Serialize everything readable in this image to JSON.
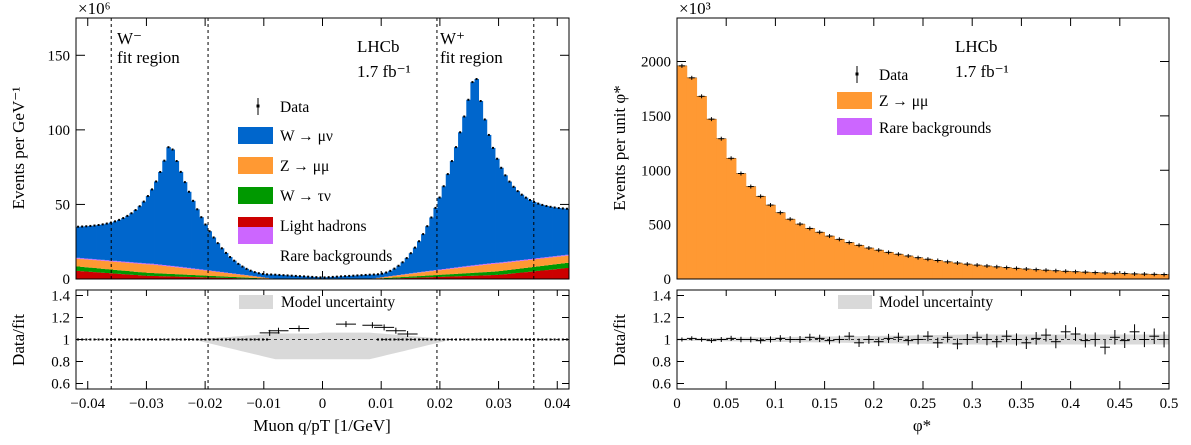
{
  "chart_data": [
    {
      "type": "bar",
      "panel": "left",
      "stacked": true,
      "xlabel": "Muon q/pT [1/GeV]",
      "ylabel": "Events per GeV⁻¹",
      "y_multiplier": "×10⁶",
      "xlim": [
        -0.042,
        0.042
      ],
      "ylim": [
        0,
        175
      ],
      "xticks": [
        -0.04,
        -0.03,
        -0.02,
        -0.01,
        0,
        0.01,
        0.02,
        0.03,
        0.04
      ],
      "xticklabels": [
        "−0.04",
        "−0.03",
        "−0.02",
        "−0.01",
        "0",
        "0.01",
        "0.02",
        "0.03",
        "0.04"
      ],
      "yticks": [
        0,
        50,
        100,
        150
      ],
      "yticklabels": [
        "0",
        "50",
        "100",
        "150"
      ],
      "experiment": "LHCb",
      "luminosity": "1.7 fb⁻¹",
      "legend": [
        "Data",
        "W → μν",
        "Z → μμ",
        "W → τν",
        "Light hadrons",
        "Rare backgrounds"
      ],
      "fit_regions": [
        {
          "label_sign": "W⁻",
          "label": "fit region",
          "range": [
            -0.036,
            -0.0195
          ]
        },
        {
          "label_sign": "W⁺",
          "label": "fit region",
          "range": [
            0.0195,
            0.036
          ]
        }
      ],
      "colors": {
        "w_munu": "#0066cc",
        "z_mumu": "#ff9933",
        "w_taunu": "#009900",
        "light_hadrons": "#cc0000",
        "rare": "#cc66ff",
        "band": "#d9d9d9"
      },
      "ratio": {
        "ylabel": "Data/fit",
        "ylim": [
          0.55,
          1.45
        ],
        "yticks": [
          0.6,
          0.8,
          1,
          1.2,
          1.4
        ],
        "yticklabels": [
          "0.6",
          "0.8",
          "1",
          "1.2",
          "1.4"
        ],
        "legend": "Model uncertainty",
        "data_points": [
          {
            "x": -0.009,
            "y": 1.06
          },
          {
            "x": -0.0075,
            "y": 1.08
          },
          {
            "x": -0.004,
            "y": 1.1
          },
          {
            "x": 0.004,
            "y": 1.14
          },
          {
            "x": 0.0085,
            "y": 1.13
          },
          {
            "x": 0.0105,
            "y": 1.11
          },
          {
            "x": 0.0125,
            "y": 1.08
          },
          {
            "x": 0.0145,
            "y": 1.05
          }
        ]
      }
    },
    {
      "type": "bar",
      "panel": "right",
      "stacked": true,
      "xlabel": "φ*",
      "ylabel": "Events per unit φ*",
      "y_multiplier": "×10³",
      "xlim": [
        0,
        0.5
      ],
      "ylim": [
        0,
        2400
      ],
      "xticks": [
        0,
        0.05,
        0.1,
        0.15,
        0.2,
        0.25,
        0.3,
        0.35,
        0.4,
        0.45,
        0.5
      ],
      "xticklabels": [
        "0",
        "0.05",
        "0.1",
        "0.15",
        "0.2",
        "0.25",
        "0.3",
        "0.35",
        "0.4",
        "0.45",
        "0.5"
      ],
      "yticks": [
        0,
        500,
        1000,
        1500,
        2000
      ],
      "yticklabels": [
        "0",
        "500",
        "1000",
        "1500",
        "2000"
      ],
      "experiment": "LHCb",
      "luminosity": "1.7 fb⁻¹",
      "legend": [
        "Data",
        "Z → μμ",
        "Rare backgrounds"
      ],
      "colors": {
        "z_mumu": "#ff9933",
        "rare": "#cc66ff",
        "band": "#d9d9d9"
      },
      "bin_width": 0.01,
      "values": [
        1960,
        1850,
        1680,
        1470,
        1290,
        1110,
        970,
        850,
        760,
        680,
        610,
        550,
        505,
        465,
        430,
        395,
        365,
        335,
        310,
        285,
        265,
        245,
        228,
        212,
        196,
        182,
        170,
        158,
        147,
        137,
        128,
        120,
        112,
        105,
        98,
        92,
        86,
        81,
        76,
        71,
        67,
        63,
        59,
        56,
        53,
        50,
        47,
        45,
        43,
        41
      ],
      "ratio": {
        "ylabel": "Data/fit",
        "ylim": [
          0.55,
          1.45
        ],
        "yticks": [
          0.6,
          0.8,
          1,
          1.2,
          1.4
        ],
        "yticklabels": [
          "0.6",
          "0.8",
          "1",
          "1.2",
          "1.4"
        ],
        "legend": "Model uncertainty",
        "values": [
          1.0,
          1.01,
          1.0,
          0.99,
          1.0,
          1.01,
          1.0,
          1.0,
          0.99,
          1.0,
          1.01,
          1.0,
          1.0,
          1.02,
          1.01,
          0.99,
          1.0,
          1.03,
          0.97,
          1.0,
          0.98,
          1.01,
          1.02,
          0.99,
          1.0,
          1.03,
          0.97,
          1.02,
          0.96,
          1.0,
          1.02,
          1.0,
          0.98,
          1.03,
          1.0,
          0.97,
          1.01,
          1.04,
          0.98,
          1.07,
          1.05,
          0.99,
          1.0,
          0.93,
          1.02,
          0.99,
          1.07,
          1.0,
          1.03,
          1.0
        ]
      }
    }
  ]
}
